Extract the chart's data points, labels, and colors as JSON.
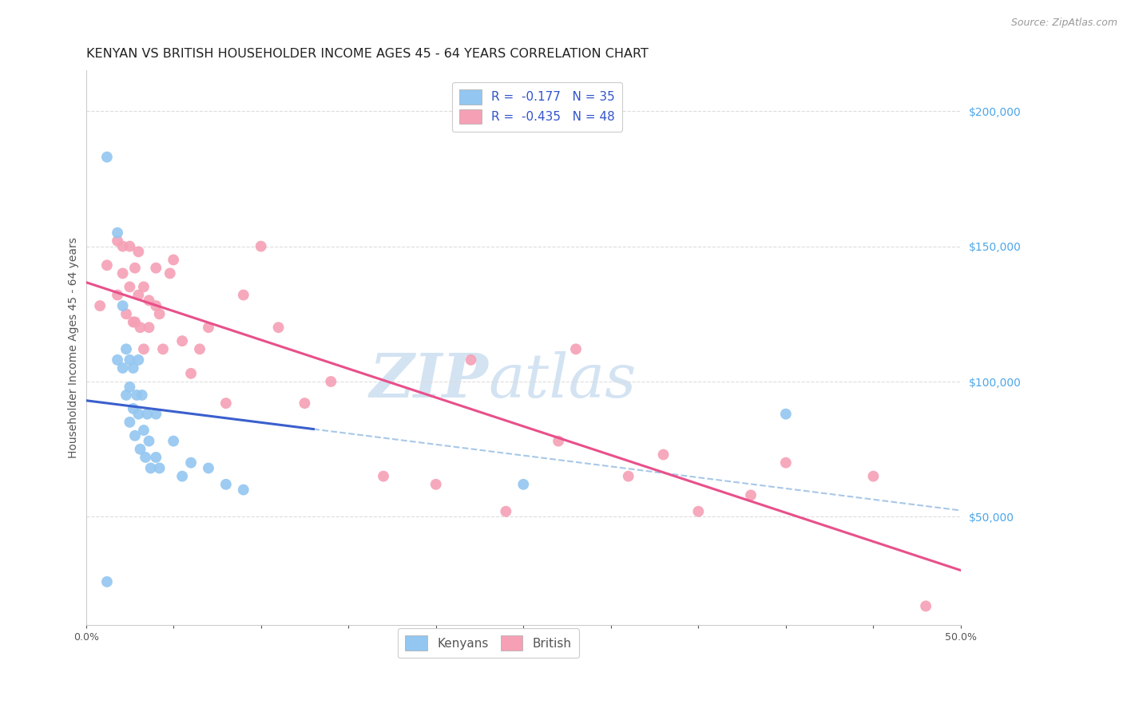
{
  "title": "KENYAN VS BRITISH HOUSEHOLDER INCOME AGES 45 - 64 YEARS CORRELATION CHART",
  "source": "Source: ZipAtlas.com",
  "ylabel": "Householder Income Ages 45 - 64 years",
  "xlim": [
    0.0,
    0.5
  ],
  "ylim": [
    10000,
    215000
  ],
  "xticks": [
    0.0,
    0.05,
    0.1,
    0.15,
    0.2,
    0.25,
    0.3,
    0.35,
    0.4,
    0.45,
    0.5
  ],
  "xtick_labels": [
    "0.0%",
    "",
    "",
    "",
    "",
    "",
    "",
    "",
    "",
    "",
    "50.0%"
  ],
  "ytick_labels_right": [
    "$50,000",
    "$100,000",
    "$150,000",
    "$200,000"
  ],
  "ytick_positions_right": [
    50000,
    100000,
    150000,
    200000
  ],
  "r_kenyan": -0.177,
  "n_kenyan": 35,
  "r_british": -0.435,
  "n_british": 48,
  "kenyan_color": "#93c6f0",
  "british_color": "#f5a0b5",
  "kenyan_line_color": "#3a5fcd",
  "british_line_color": "#e8508a",
  "dashed_line_color": "#a8c8e8",
  "background_color": "#ffffff",
  "grid_color": "#dddddd",
  "watermark_zip": "ZIP",
  "watermark_atlas": "atlas",
  "kenyan_x": [
    0.012,
    0.018,
    0.018,
    0.021,
    0.021,
    0.023,
    0.023,
    0.025,
    0.025,
    0.025,
    0.027,
    0.027,
    0.028,
    0.029,
    0.03,
    0.03,
    0.031,
    0.032,
    0.033,
    0.034,
    0.035,
    0.036,
    0.037,
    0.04,
    0.04,
    0.042,
    0.05,
    0.055,
    0.06,
    0.07,
    0.08,
    0.09,
    0.012,
    0.25,
    0.4
  ],
  "kenyan_y": [
    183000,
    155000,
    108000,
    128000,
    105000,
    112000,
    95000,
    108000,
    98000,
    85000,
    105000,
    90000,
    80000,
    95000,
    108000,
    88000,
    75000,
    95000,
    82000,
    72000,
    88000,
    78000,
    68000,
    88000,
    72000,
    68000,
    78000,
    65000,
    70000,
    68000,
    62000,
    60000,
    26000,
    62000,
    88000
  ],
  "british_x": [
    0.008,
    0.012,
    0.018,
    0.018,
    0.021,
    0.021,
    0.023,
    0.025,
    0.025,
    0.027,
    0.028,
    0.028,
    0.03,
    0.03,
    0.031,
    0.033,
    0.033,
    0.036,
    0.036,
    0.04,
    0.04,
    0.042,
    0.044,
    0.048,
    0.05,
    0.055,
    0.06,
    0.065,
    0.07,
    0.08,
    0.09,
    0.1,
    0.11,
    0.125,
    0.14,
    0.17,
    0.2,
    0.22,
    0.24,
    0.27,
    0.28,
    0.31,
    0.33,
    0.35,
    0.38,
    0.4,
    0.45,
    0.48
  ],
  "british_y": [
    128000,
    143000,
    152000,
    132000,
    150000,
    140000,
    125000,
    150000,
    135000,
    122000,
    142000,
    122000,
    148000,
    132000,
    120000,
    135000,
    112000,
    120000,
    130000,
    142000,
    128000,
    125000,
    112000,
    140000,
    145000,
    115000,
    103000,
    112000,
    120000,
    92000,
    132000,
    150000,
    120000,
    92000,
    100000,
    65000,
    62000,
    108000,
    52000,
    78000,
    112000,
    65000,
    73000,
    52000,
    58000,
    70000,
    65000,
    17000
  ],
  "marker_size": 100,
  "title_fontsize": 11.5,
  "axis_label_fontsize": 10,
  "tick_fontsize": 9,
  "legend_fontsize": 11,
  "source_fontsize": 9
}
